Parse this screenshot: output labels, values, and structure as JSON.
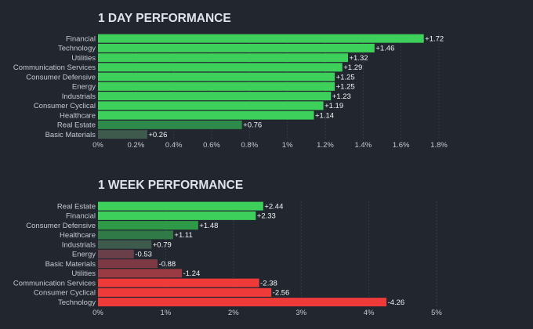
{
  "colors": {
    "background": "#22262f",
    "positive_strong": "#3dd05b",
    "positive_mid": "#2e9a47",
    "positive_weak": "#2f7a46",
    "positive_faint": "#3e5a4c",
    "negative_faint": "#6a3f4a",
    "negative_mid": "#9a3a42",
    "negative_strong": "#ef3a3a"
  },
  "chart_data": [
    {
      "type": "bar",
      "orientation": "horizontal",
      "title": "1 DAY PERFORMANCE",
      "categories": [
        "Financial",
        "Technology",
        "Utilities",
        "Communication Services",
        "Consumer Defensive",
        "Energy",
        "Industrials",
        "Consumer Cyclical",
        "Healthcare",
        "Real Estate",
        "Basic Materials"
      ],
      "values": [
        1.72,
        1.46,
        1.32,
        1.29,
        1.25,
        1.25,
        1.23,
        1.19,
        1.14,
        0.76,
        0.26
      ],
      "value_labels": [
        "+1.72",
        "+1.46",
        "+1.32",
        "+1.29",
        "+1.25",
        "+1.25",
        "+1.23",
        "+1.19",
        "+1.14",
        "+0.76",
        "+0.26"
      ],
      "bar_colors": [
        "#3dd05b",
        "#3dd05b",
        "#3dd05b",
        "#3dd05b",
        "#3dd05b",
        "#3dd05b",
        "#3dd05b",
        "#3dd05b",
        "#3dd05b",
        "#2e8a4a",
        "#3e5a4c"
      ],
      "xlim": [
        0,
        1.8
      ],
      "xticks": [
        0,
        0.2,
        0.4,
        0.6,
        0.8,
        1,
        1.2,
        1.4,
        1.6,
        1.8
      ],
      "xtick_labels": [
        "0%",
        "0.2%",
        "0.4%",
        "0.6%",
        "0.8%",
        "1%",
        "1.2%",
        "1.4%",
        "1.6%",
        "1.8%"
      ],
      "grid": true
    },
    {
      "type": "bar",
      "orientation": "horizontal",
      "title": "1 WEEK PERFORMANCE",
      "categories": [
        "Real Estate",
        "Financial",
        "Consumer Defensive",
        "Healthcare",
        "Industrials",
        "Energy",
        "Basic Materials",
        "Utilities",
        "Communication Services",
        "Consumer Cyclical",
        "Technology"
      ],
      "values": [
        2.44,
        2.33,
        1.48,
        1.11,
        0.79,
        -0.53,
        -0.88,
        -1.24,
        -2.38,
        -2.56,
        -4.26
      ],
      "value_labels": [
        "+2.44",
        "+2.33",
        "+1.48",
        "+1.11",
        "+0.79",
        "-0.53",
        "-0.88",
        "-1.24",
        "-2.38",
        "-2.56",
        "-4.26"
      ],
      "bar_colors": [
        "#3dd05b",
        "#3dd05b",
        "#2e9a47",
        "#2f7a46",
        "#3e5a4c",
        "#6a3f4a",
        "#7e3a44",
        "#9a3a42",
        "#ef3a3a",
        "#ef3a3a",
        "#ef3a3a"
      ],
      "xlim": [
        0,
        5
      ],
      "xticks": [
        0,
        1,
        2,
        3,
        4,
        5
      ],
      "xtick_labels": [
        "0%",
        "1%",
        "2%",
        "3%",
        "4%",
        "5%"
      ],
      "grid": true
    }
  ]
}
